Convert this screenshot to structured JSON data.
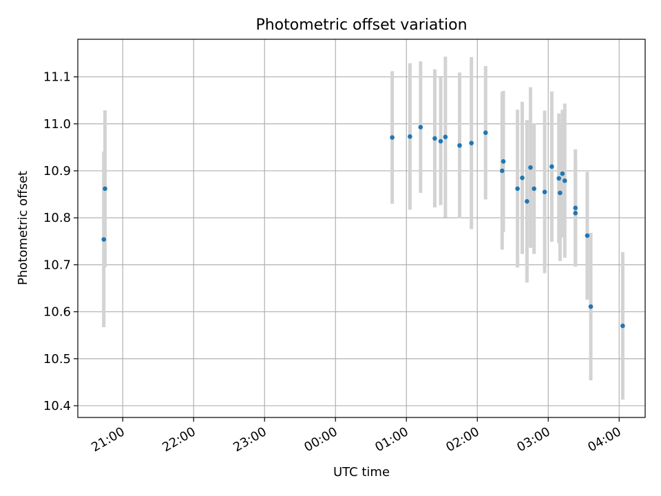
{
  "chart_data": {
    "type": "scatter",
    "title": "Photometric offset variation",
    "xlabel": "UTC time",
    "ylabel": "Photometric offset",
    "x_axis_type": "time",
    "x_reference_date": "",
    "xlim": [
      "20:22",
      "04:22"
    ],
    "ylim": [
      10.375,
      11.18
    ],
    "x_ticks": [
      "21:00",
      "22:00",
      "23:00",
      "00:00",
      "01:00",
      "02:00",
      "03:00",
      "04:00"
    ],
    "y_ticks": [
      10.4,
      10.5,
      10.6,
      10.7,
      10.8,
      10.9,
      11.0,
      11.1
    ],
    "y_tick_labels": [
      "10.4",
      "10.5",
      "10.6",
      "10.7",
      "10.8",
      "10.9",
      "11.0",
      "11.1"
    ],
    "grid": true,
    "colors": {
      "marker": "#1f77b4",
      "errorbar": "#d3d3d3",
      "grid": "#b0b0b0"
    },
    "series": [
      {
        "points": [
          {
            "t": "20:44",
            "y": 10.754,
            "err": 0.187
          },
          {
            "t": "20:45",
            "y": 10.862,
            "err": 0.167
          },
          {
            "t": "00:48",
            "y": 10.971,
            "err": 0.141
          },
          {
            "t": "01:03",
            "y": 10.973,
            "err": 0.156
          },
          {
            "t": "01:12",
            "y": 10.993,
            "err": 0.14
          },
          {
            "t": "01:24",
            "y": 10.969,
            "err": 0.147
          },
          {
            "t": "01:29",
            "y": 10.963,
            "err": 0.136
          },
          {
            "t": "01:33",
            "y": 10.972,
            "err": 0.171
          },
          {
            "t": "01:45",
            "y": 10.954,
            "err": 0.155
          },
          {
            "t": "01:55",
            "y": 10.959,
            "err": 0.183
          },
          {
            "t": "02:07",
            "y": 10.981,
            "err": 0.142
          },
          {
            "t": "02:21",
            "y": 10.9,
            "err": 0.168
          },
          {
            "t": "02:22",
            "y": 10.92,
            "err": 0.15
          },
          {
            "t": "02:34",
            "y": 10.862,
            "err": 0.168
          },
          {
            "t": "02:38",
            "y": 10.885,
            "err": 0.162
          },
          {
            "t": "02:42",
            "y": 10.835,
            "err": 0.173
          },
          {
            "t": "02:45",
            "y": 10.907,
            "err": 0.171
          },
          {
            "t": "02:48",
            "y": 10.862,
            "err": 0.139
          },
          {
            "t": "02:57",
            "y": 10.855,
            "err": 0.173
          },
          {
            "t": "03:03",
            "y": 10.909,
            "err": 0.16
          },
          {
            "t": "03:09",
            "y": 10.884,
            "err": 0.138
          },
          {
            "t": "03:10",
            "y": 10.853,
            "err": 0.145
          },
          {
            "t": "03:12",
            "y": 10.894,
            "err": 0.136
          },
          {
            "t": "03:14",
            "y": 10.879,
            "err": 0.164
          },
          {
            "t": "03:23",
            "y": 10.81,
            "err": 0.11
          },
          {
            "t": "03:23",
            "y": 10.821,
            "err": 0.125
          },
          {
            "t": "03:33",
            "y": 10.762,
            "err": 0.136
          },
          {
            "t": "03:36",
            "y": 10.611,
            "err": 0.157
          },
          {
            "t": "04:03",
            "y": 10.57,
            "err": 0.157
          }
        ]
      }
    ]
  }
}
